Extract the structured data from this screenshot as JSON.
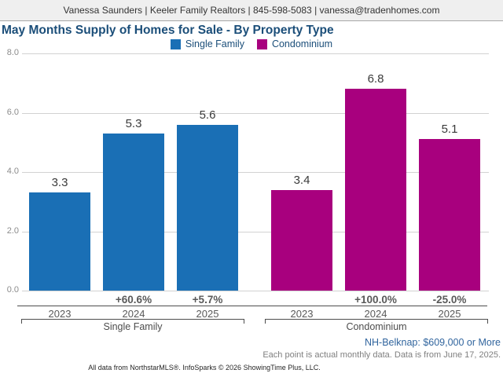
{
  "header": {
    "contact": "Vanessa Saunders | Keeler Family Realtors | 845-598-5083 | vanessa@tradenhomes.com"
  },
  "title": "May Months Supply of Homes for Sale - By Property Type",
  "legend": {
    "items": [
      {
        "label": "Single Family",
        "color": "#1a6fb5"
      },
      {
        "label": "Condominium",
        "color": "#a8007e"
      }
    ]
  },
  "chart_data": {
    "type": "bar",
    "title": "May Months Supply of Homes for Sale - By Property Type",
    "xlabel": "",
    "ylabel": "",
    "ylim": [
      0,
      8
    ],
    "yticks": [
      "0.0",
      "2.0",
      "4.0",
      "6.0",
      "8.0"
    ],
    "grid": true,
    "legend_position": "top-center",
    "groups": [
      {
        "name": "Single Family",
        "color": "#1a6fb5",
        "categories": [
          "2023",
          "2024",
          "2025"
        ],
        "values": [
          3.3,
          5.3,
          5.6
        ],
        "pct_change": [
          "",
          "+60.6%",
          "+5.7%"
        ]
      },
      {
        "name": "Condominium",
        "color": "#a8007e",
        "categories": [
          "2023",
          "2024",
          "2025"
        ],
        "values": [
          3.4,
          6.8,
          5.1
        ],
        "pct_change": [
          "",
          "+100.0%",
          "-25.0%"
        ]
      }
    ]
  },
  "footer": {
    "market_note": "NH-Belknap: $609,000 or More",
    "data_note": "Each point is actual monthly data. Data is from June 17, 2025.",
    "attribution": "All data from NorthstarMLS®. InfoSparks © 2026 ShowingTime Plus, LLC."
  }
}
